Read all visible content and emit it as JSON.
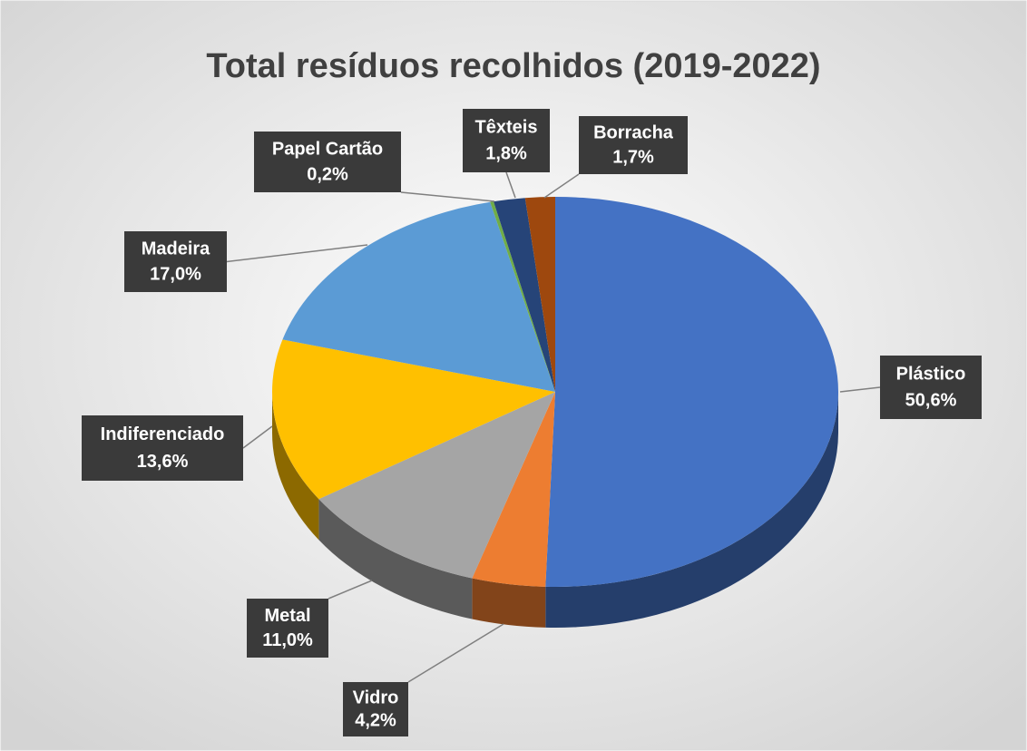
{
  "chart_data": {
    "type": "pie3d",
    "title": "Total resíduos recolhidos (2019-2022)",
    "categories": [
      "Plástico",
      "Vidro",
      "Metal",
      "Indiferenciado",
      "Madeira",
      "Papel Cartão",
      "Têxteis",
      "Borracha"
    ],
    "values": [
      50.6,
      4.2,
      11.0,
      13.6,
      17.0,
      0.2,
      1.8,
      1.7
    ],
    "value_labels": [
      "50,6%",
      "4,2%",
      "11,0%",
      "13,6%",
      "17,0%",
      "0,2%",
      "1,8%",
      "1,7%"
    ],
    "colors": [
      "#4472c4",
      "#ed7d31",
      "#a5a5a5",
      "#ffc000",
      "#5b9bd5",
      "#70ad47",
      "#264478",
      "#9e480e"
    ]
  }
}
